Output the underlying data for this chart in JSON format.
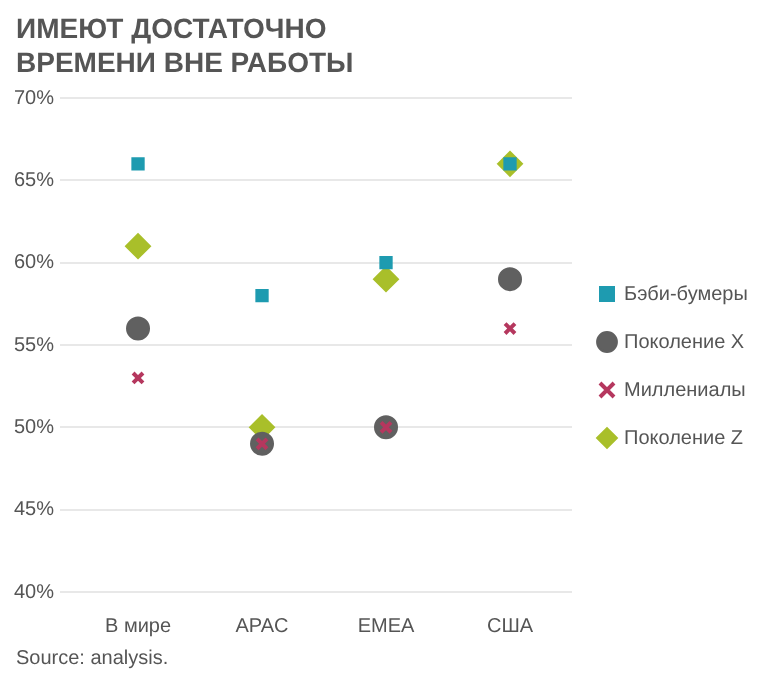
{
  "chart_data": {
    "type": "scatter",
    "title": "ИМЕЮТ ДОСТАТОЧНО ВРЕМЕНИ ВНЕ РАБОТЫ",
    "categories": [
      "В мире",
      "APAC",
      "EMEA",
      "США"
    ],
    "series": [
      {
        "name": "Бэби-бумеры",
        "color": "#1e9bb0",
        "marker": "square",
        "values": [
          66,
          58,
          60,
          66
        ]
      },
      {
        "name": "Поколение X",
        "color": "#606060",
        "marker": "circle",
        "values": [
          56,
          49,
          50,
          59
        ]
      },
      {
        "name": "Миллениалы",
        "color": "#b5375e",
        "marker": "cross",
        "values": [
          53,
          49,
          50,
          56
        ]
      },
      {
        "name": "Поколение Z",
        "color": "#a9bf2a",
        "marker": "diamond",
        "values": [
          61,
          50,
          59,
          66
        ]
      }
    ],
    "ylim": [
      40,
      70
    ],
    "yticks": [
      {
        "value": 40,
        "label": "40%"
      },
      {
        "value": 45,
        "label": "45%"
      },
      {
        "value": 50,
        "label": "50%"
      },
      {
        "value": 55,
        "label": "55%"
      },
      {
        "value": 60,
        "label": "60%"
      },
      {
        "value": 65,
        "label": "65%"
      },
      {
        "value": 70,
        "label": "70%"
      }
    ],
    "grid": "y",
    "legend": "right",
    "annotations": [
      "Source: analysis."
    ]
  }
}
